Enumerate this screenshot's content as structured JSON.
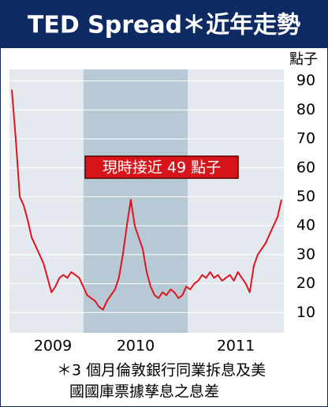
{
  "chart_data": {
    "type": "line",
    "title": "TED Spread＊近年走勢",
    "y_unit": "點子",
    "annotation": "現時接近 49 點子",
    "x_labels": [
      "2009",
      "2010",
      "2011"
    ],
    "shaded_label": 1,
    "footnote": [
      "＊3 個月倫敦銀行同業拆息及美",
      "國國庫票據孳息之息差"
    ],
    "series": [
      {
        "color": "#e0141e",
        "values": [
          87,
          70,
          50,
          47,
          42,
          36,
          33,
          30,
          27,
          22,
          17,
          19,
          22,
          23,
          22,
          24,
          23,
          22,
          19,
          16,
          15,
          14,
          12,
          11,
          14,
          16,
          18,
          22,
          30,
          40,
          49,
          40,
          36,
          32,
          24,
          19,
          16,
          15,
          17,
          16,
          18,
          17,
          15,
          16,
          19,
          18,
          20,
          21,
          23,
          22,
          24,
          22,
          23,
          21,
          22,
          23,
          21,
          24,
          22,
          20,
          17,
          26,
          30,
          32,
          34,
          37,
          40,
          43,
          49
        ]
      }
    ],
    "ylim": [
      3,
      94
    ],
    "yticks": [
      10,
      20,
      30,
      40,
      50,
      60,
      70,
      80,
      90
    ],
    "grid": true
  }
}
